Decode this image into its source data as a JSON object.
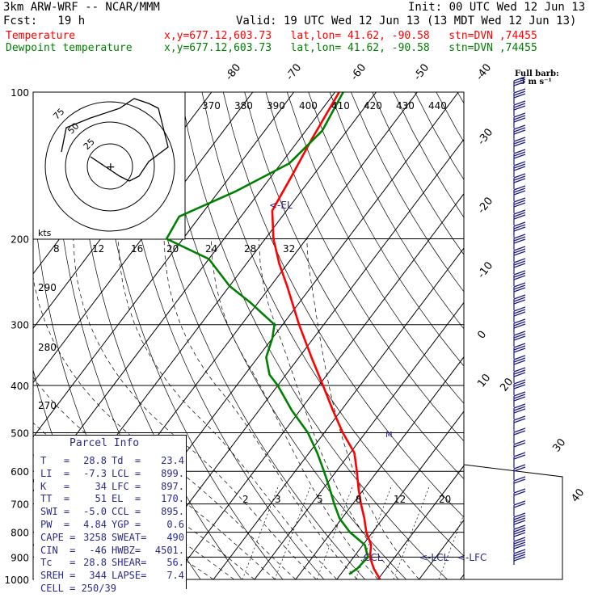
{
  "header": {
    "model": "3km ARW-WRF -- NCAR/MMM",
    "init": "Init: 00 UTC Wed 12 Jun 13",
    "fcst": "Fcst:   19 h",
    "valid": "Valid: 19 UTC Wed 12 Jun 13 (13 MDT Wed 12 Jun 13)",
    "temp_label": "Temperature",
    "temp_loc": "x,y=677.12,603.73   lat,lon= 41.62, -90.58   stn=DVN ,74455",
    "dew_label": "Dewpoint temperature",
    "dew_loc": "x,y=677.12,603.73   lat,lon= 41.62, -90.58   stn=DVN ,74455"
  },
  "colors": {
    "temperature": "#ff0000",
    "dewpoint": "#008000",
    "text": "#000000",
    "label": "#2a2a8c",
    "barb": "#1a1a8c"
  },
  "chart_data": {
    "type": "line",
    "pressure_levels": [
      100,
      200,
      300,
      400,
      500,
      600,
      700,
      800,
      900,
      1000
    ],
    "temp_labels": [
      "-80",
      "-70",
      "-60",
      "-50",
      "-40",
      "-30",
      "-20",
      "-10",
      "0",
      "10",
      "20",
      "30",
      "40"
    ],
    "mixing_ratio_labels": [
      "2",
      "3",
      "5",
      "8",
      "12",
      "20"
    ],
    "theta_labels": [
      "370",
      "380",
      "390",
      "400",
      "410",
      "420",
      "430",
      "440"
    ],
    "theta_side_labels": [
      "290",
      "280",
      "270"
    ],
    "hodo_speed_labels": [
      "8",
      "12",
      "16",
      "20",
      "24",
      "28",
      "32"
    ],
    "hodo_ring_labels": [
      "75",
      "50",
      "25"
    ],
    "kts_label": "kts",
    "series": [
      {
        "name": "Temperature",
        "pressure": [
          1000,
          950,
          925,
          900,
          875,
          850,
          800,
          750,
          700,
          650,
          600,
          550,
          500,
          450,
          400,
          350,
          300,
          250,
          225,
          200,
          175,
          150,
          125,
          100
        ],
        "values": [
          30.5,
          27.0,
          25.5,
          24.0,
          23.0,
          22.0,
          18.5,
          15.5,
          12.0,
          8.5,
          5.0,
          1.0,
          -5.5,
          -12.0,
          -19.0,
          -27.0,
          -36.0,
          -46.0,
          -52.0,
          -58.0,
          -63.5,
          -65.0,
          -67.0,
          -69.0
        ]
      },
      {
        "name": "Dewpoint temperature",
        "pressure": [
          975,
          950,
          925,
          900,
          875,
          850,
          800,
          750,
          700,
          650,
          600,
          550,
          500,
          450,
          400,
          380,
          350,
          320,
          300,
          270,
          250,
          220,
          200,
          180,
          160,
          140,
          120,
          100
        ],
        "values": [
          22.0,
          23.0,
          23.2,
          23.5,
          22.0,
          20.5,
          14.5,
          9.5,
          5.5,
          1.5,
          -3.0,
          -8.0,
          -14.0,
          -22.0,
          -30.0,
          -34.0,
          -38.0,
          -40.0,
          -42.0,
          -52.0,
          -60.0,
          -70.0,
          -84.0,
          -85.0,
          -76.0,
          -68.0,
          -66.0,
          -68.0
        ]
      }
    ],
    "hodograph": {
      "u": [
        -10,
        -9,
        -4,
        2,
        5,
        8,
        10,
        11,
        12,
        8,
        6,
        4,
        2,
        -4
      ],
      "v": [
        3,
        8,
        10,
        12,
        14,
        13,
        12,
        8,
        4,
        1,
        -2,
        -3,
        -2,
        2
      ]
    },
    "annotations": {
      "el": "<-EL",
      "lcl": "<-LCL",
      "lfc": "<-LFC",
      "ccl": "CCL",
      "parcel_marker": "M"
    },
    "wind_barb_key": {
      "title": "Full barb:",
      "value": "5 m s⁻¹"
    }
  },
  "parcel_info": {
    "title": "Parcel Info",
    "rows": [
      [
        "T   =",
        "28.8",
        "Td  =",
        "23.4"
      ],
      [
        "LI  =",
        "-7.3",
        "LCL =",
        "899."
      ],
      [
        "K   =",
        "34",
        "LFC =",
        "897."
      ],
      [
        "TT  =",
        "51",
        "EL  =",
        "170."
      ],
      [
        "SWI =",
        "-5.0",
        "CCL =",
        "895."
      ],
      [
        "PW  =",
        "4.84",
        "YGP =",
        "0.6"
      ],
      [
        "CAPE =",
        "3258",
        "SWEAT=",
        "490"
      ],
      [
        "CIN  =",
        "-46",
        "HWBZ=",
        "4501."
      ],
      [
        "Tc   =",
        "28.8",
        "SHEAR=",
        "56."
      ],
      [
        "SREH =",
        "344",
        "LAPSE=",
        "7.4"
      ],
      [
        "CELL = 250/39",
        "",
        "",
        ""
      ]
    ]
  }
}
